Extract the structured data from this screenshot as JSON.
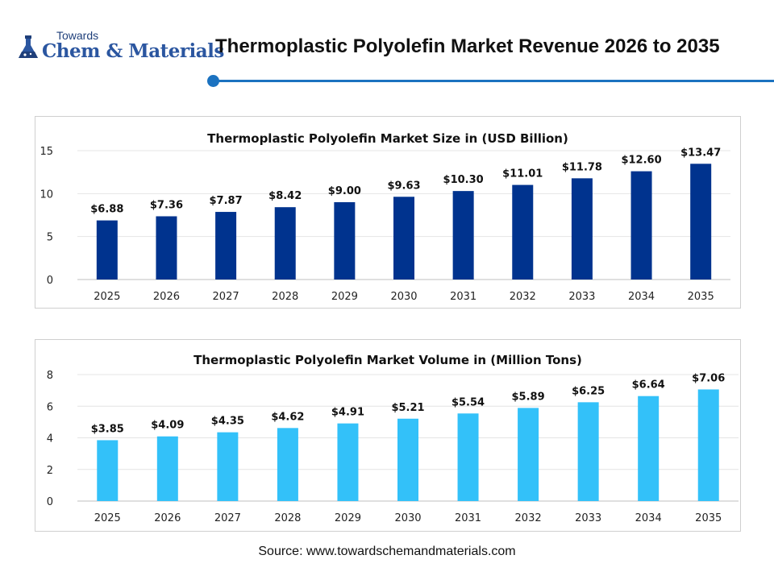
{
  "header": {
    "logo_small": "Towards",
    "logo_big": "Chem & Materials",
    "title": "Thermoplastic Polyolefin Market Revenue 2026 to 2035"
  },
  "colors": {
    "accent": "#1b72c0",
    "series1": "#00338e",
    "series2": "#33c1f9"
  },
  "chart_data": [
    {
      "type": "bar",
      "title": "Thermoplastic Polyolefin Market Size in (USD Billion)",
      "categories": [
        "2025",
        "2026",
        "2027",
        "2028",
        "2029",
        "2030",
        "2031",
        "2032",
        "2033",
        "2034",
        "2035"
      ],
      "values": [
        6.88,
        7.36,
        7.87,
        8.42,
        9.0,
        9.63,
        10.3,
        11.01,
        11.78,
        12.6,
        13.47
      ],
      "labels": [
        "$6.88",
        "$7.36",
        "$7.87",
        "$8.42",
        "$9.00",
        "$9.63",
        "$10.30",
        "$11.01",
        "$11.78",
        "$12.60",
        "$13.47"
      ],
      "yticks": [
        "0",
        "5",
        "10",
        "15"
      ],
      "ylim": [
        0,
        15
      ],
      "grid": true,
      "color": "#00338e"
    },
    {
      "type": "bar",
      "title": "Thermoplastic Polyolefin Market Volume in (Million Tons)",
      "categories": [
        "2025",
        "2026",
        "2027",
        "2028",
        "2029",
        "2030",
        "2031",
        "2032",
        "2033",
        "2034",
        "2035"
      ],
      "values": [
        3.85,
        4.09,
        4.35,
        4.62,
        4.91,
        5.21,
        5.54,
        5.89,
        6.25,
        6.64,
        7.06
      ],
      "labels": [
        "$3.85",
        "$4.09",
        "$4.35",
        "$4.62",
        "$4.91",
        "$5.21",
        "$5.54",
        "$5.89",
        "$6.25",
        "$6.64",
        "$7.06"
      ],
      "yticks": [
        "0",
        "2",
        "4",
        "6",
        "8"
      ],
      "ylim": [
        0,
        8
      ],
      "grid": true,
      "color": "#33c1f9"
    }
  ],
  "source": "Source: www.towardschemandmaterials.com"
}
